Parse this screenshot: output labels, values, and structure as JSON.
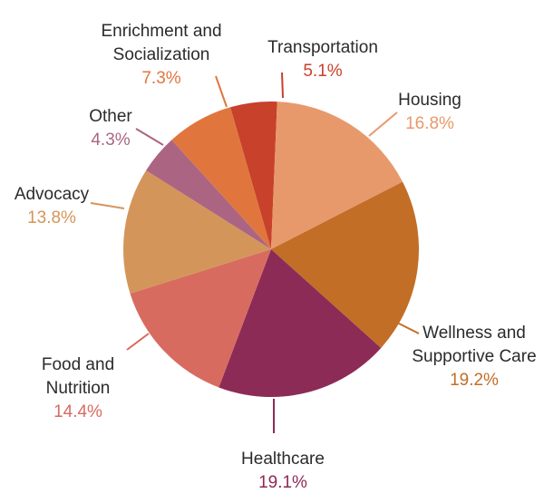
{
  "chart_data": {
    "type": "pie",
    "title": "",
    "slices": [
      {
        "name": "Transportation",
        "lines": [
          "Transportation"
        ],
        "value": 5.1,
        "label": "5.1%",
        "color": "#c8412b"
      },
      {
        "name": "Housing",
        "lines": [
          "Housing"
        ],
        "value": 16.8,
        "label": "16.8%",
        "color": "#e8996c"
      },
      {
        "name": "Wellness and Supportive Care",
        "lines": [
          "Wellness and",
          "Supportive Care"
        ],
        "value": 19.2,
        "label": "19.2%",
        "color": "#c26e27"
      },
      {
        "name": "Healthcare",
        "lines": [
          "Healthcare"
        ],
        "value": 19.1,
        "label": "19.1%",
        "color": "#8c2b56"
      },
      {
        "name": "Food and Nutrition",
        "lines": [
          "Food and",
          "Nutrition"
        ],
        "value": 14.4,
        "label": "14.4%",
        "color": "#d86b5f"
      },
      {
        "name": "Advocacy",
        "lines": [
          "Advocacy"
        ],
        "value": 13.8,
        "label": "13.8%",
        "color": "#d4955a"
      },
      {
        "name": "Other",
        "lines": [
          "Other"
        ],
        "value": 4.3,
        "label": "4.3%",
        "color": "#ab6582"
      },
      {
        "name": "Enrichment and Socialization",
        "lines": [
          "Enrichment and",
          "Socialization"
        ],
        "value": 7.3,
        "label": "7.3%",
        "color": "#e0763e"
      }
    ]
  }
}
